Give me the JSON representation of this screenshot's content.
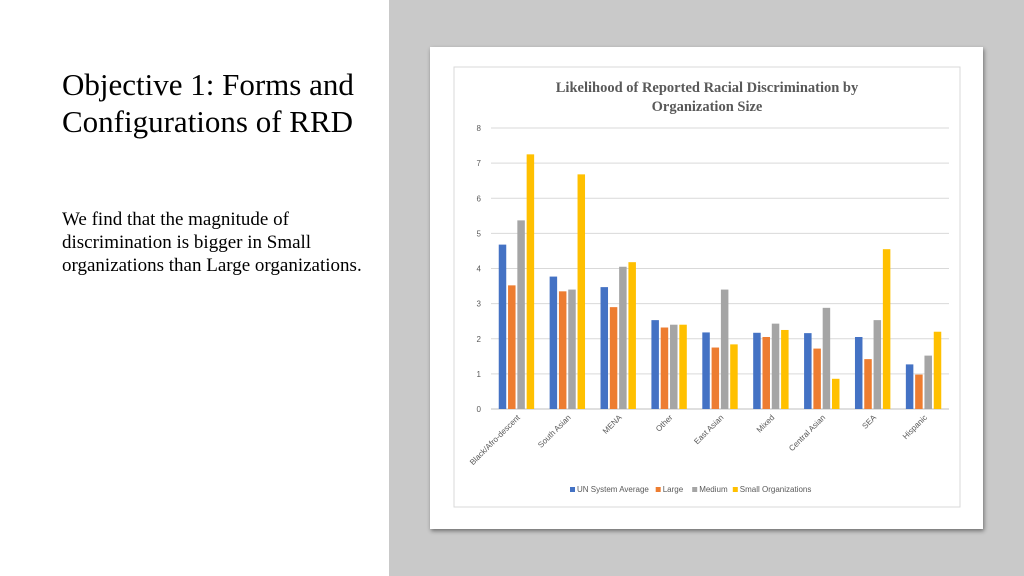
{
  "slide": {
    "title": "Objective 1: Forms and Configurations of RRD",
    "body": "We find that the magnitude of discrimination is bigger  in Small organizations than Large organizations."
  },
  "chart_data": {
    "type": "bar",
    "title_line1": "Likelihood of Reported Racial Discrimination by",
    "title_line2": "Organization Size",
    "categories": [
      "Black/Afro-descent",
      "South Asian",
      "MENA",
      "Other",
      "East Asian",
      "Mixed",
      "Central Asian",
      "SEA",
      "Hispanic"
    ],
    "series": [
      {
        "name": "UN System Average",
        "color": "#4472c4",
        "values": [
          4.68,
          3.77,
          3.47,
          2.53,
          2.18,
          2.17,
          2.16,
          2.05,
          1.27
        ]
      },
      {
        "name": "Large",
        "color": "#ed7d31",
        "values": [
          3.52,
          3.35,
          2.9,
          2.32,
          1.75,
          2.05,
          1.72,
          1.42,
          0.98
        ]
      },
      {
        "name": "Medium",
        "color": "#a5a5a5",
        "values": [
          5.37,
          3.4,
          4.05,
          2.4,
          3.4,
          2.43,
          2.88,
          2.53,
          1.52
        ]
      },
      {
        "name": "Small Organizations",
        "color": "#ffc000",
        "values": [
          7.25,
          6.68,
          4.18,
          2.4,
          1.84,
          2.25,
          0.86,
          4.55,
          2.2
        ]
      }
    ],
    "ylim": [
      0,
      8
    ],
    "yticks": [
      "0",
      "1",
      "2",
      "3",
      "4",
      "5",
      "6",
      "7",
      "8"
    ],
    "legend_position": "bottom",
    "gridlines": true
  }
}
